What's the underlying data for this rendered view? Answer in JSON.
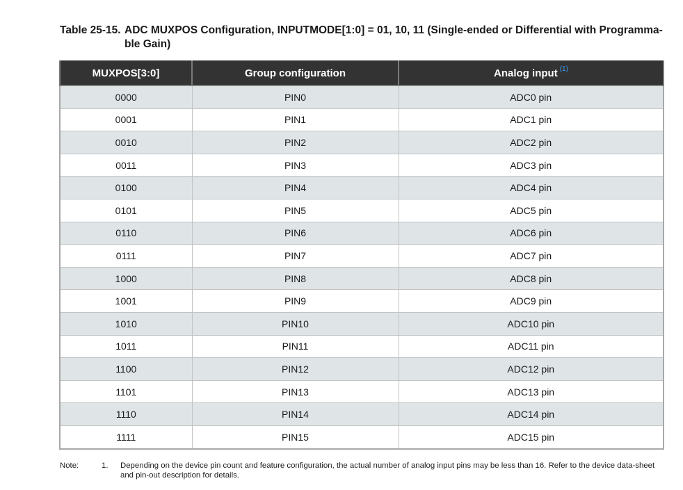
{
  "caption": {
    "label": "Table 25-15.",
    "text": "ADC MUXPOS Configuration, INPUTMODE[1:0] = 01, 10, 11 (Single-ended or Differential with Programma-ble Gain)"
  },
  "table": {
    "headers": {
      "muxpos": "MUXPOS[3:0]",
      "group": "Group configuration",
      "analog": "Analog input",
      "analog_ref": "(1)"
    },
    "rows": [
      [
        "0000",
        "PIN0",
        "ADC0 pin"
      ],
      [
        "0001",
        "PIN1",
        "ADC1 pin"
      ],
      [
        "0010",
        "PIN2",
        "ADC2 pin"
      ],
      [
        "0011",
        "PIN3",
        "ADC3 pin"
      ],
      [
        "0100",
        "PIN4",
        "ADC4 pin"
      ],
      [
        "0101",
        "PIN5",
        "ADC5 pin"
      ],
      [
        "0110",
        "PIN6",
        "ADC6 pin"
      ],
      [
        "0111",
        "PIN7",
        "ADC7 pin"
      ],
      [
        "1000",
        "PIN8",
        "ADC8 pin"
      ],
      [
        "1001",
        "PIN9",
        "ADC9 pin"
      ],
      [
        "1010",
        "PIN10",
        "ADC10 pin"
      ],
      [
        "1011",
        "PIN11",
        "ADC11 pin"
      ],
      [
        "1100",
        "PIN12",
        "ADC12 pin"
      ],
      [
        "1101",
        "PIN13",
        "ADC13 pin"
      ],
      [
        "1110",
        "PIN14",
        "ADC14 pin"
      ],
      [
        "1111",
        "PIN15",
        "ADC15 pin"
      ]
    ],
    "colors": {
      "header_bg": "#333333",
      "header_text": "#ffffff",
      "shaded_row": "#dfe4e7",
      "footnote_ref": "#3aa0ff"
    }
  },
  "note": {
    "label": "Note:",
    "number": "1.",
    "text": "Depending on the device pin count and feature configuration, the actual number of analog input pins may be less than 16. Refer to the device data-sheet and pin-out description for details."
  }
}
